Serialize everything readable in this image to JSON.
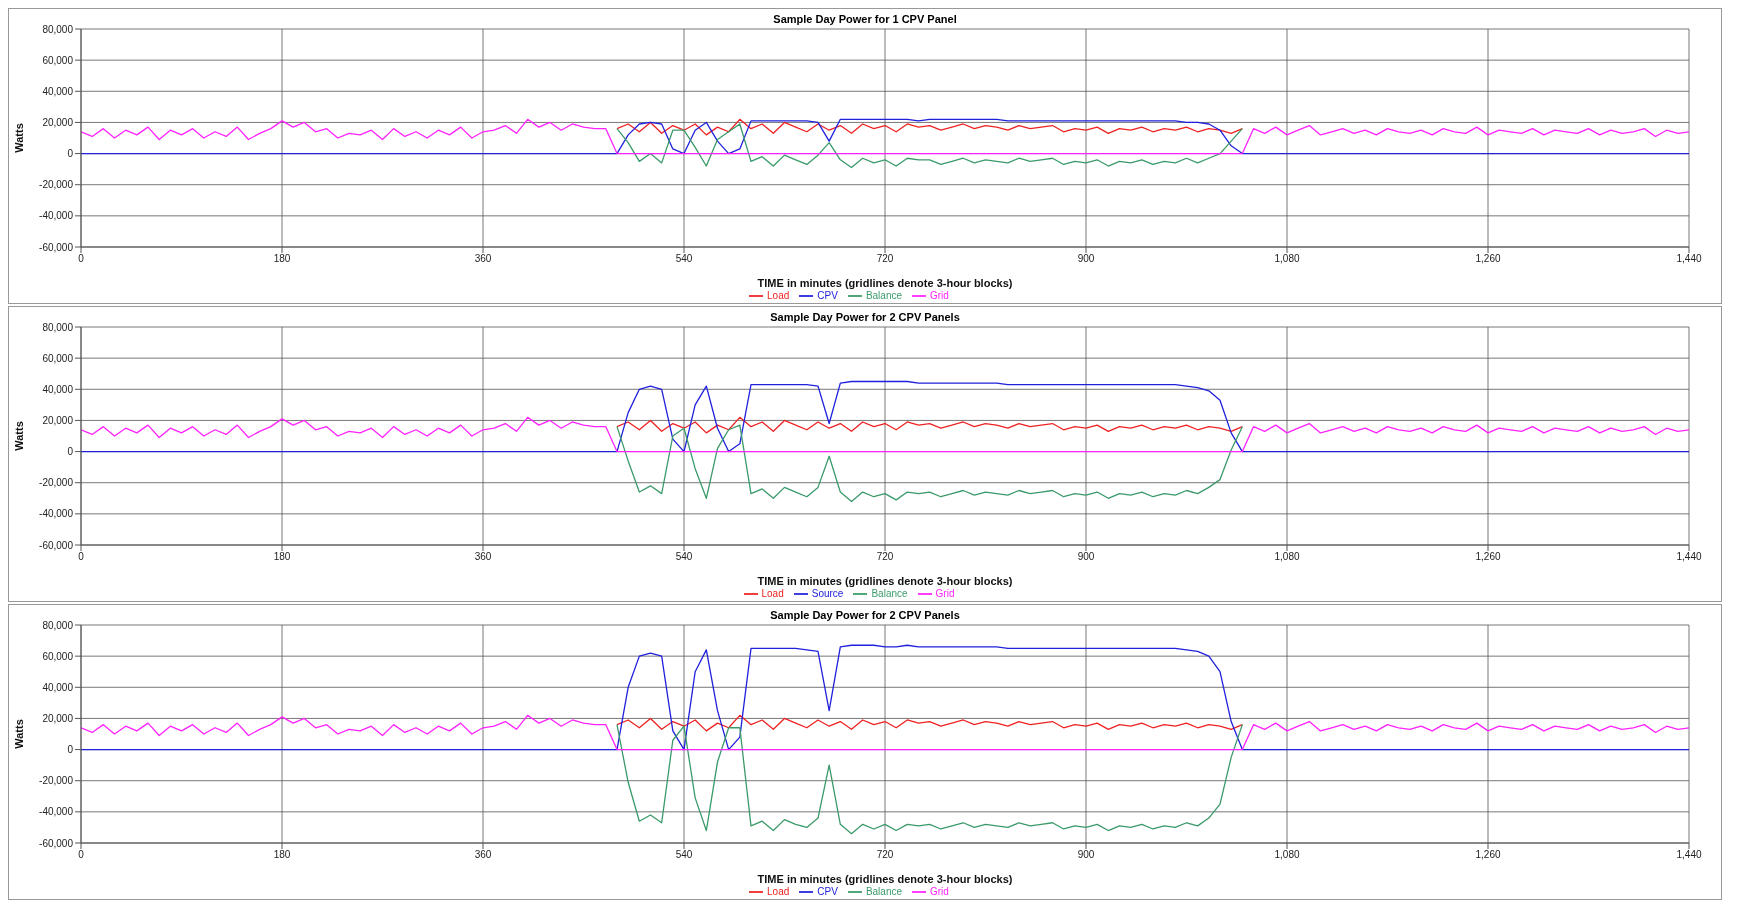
{
  "chart_data": [
    {
      "type": "line",
      "title": "Sample Day Power for 1 CPV Panel",
      "xlabel": "TIME in minutes (gridlines denote 3-hour blocks)",
      "ylabel": "Watts",
      "xlim": [
        0,
        1440
      ],
      "xticks": [
        0,
        180,
        360,
        540,
        720,
        900,
        {
          "value": 1080,
          "label": "1,080"
        },
        {
          "value": 1260,
          "label": "1,260"
        },
        {
          "value": 1440,
          "label": "1,440"
        }
      ],
      "ylim": [
        -60000,
        80000
      ],
      "yticks": [
        {
          "value": -60000,
          "label": "-60,000"
        },
        {
          "value": -40000,
          "label": "-40,000"
        },
        {
          "value": -20000,
          "label": "-20,000"
        },
        {
          "value": 0,
          "label": "0"
        },
        {
          "value": 20000,
          "label": "20,000"
        },
        {
          "value": 40000,
          "label": "40,000"
        },
        {
          "value": 60000,
          "label": "60,000"
        },
        {
          "value": 80000,
          "label": "80,000"
        }
      ],
      "grid": true,
      "legend": "bottom",
      "series": [
        {
          "name": "Load",
          "color": "#ee2222",
          "x": [
            480,
            490,
            500,
            510,
            520,
            530,
            540,
            550,
            560,
            570,
            580,
            590,
            600,
            610,
            620,
            630,
            640,
            650,
            660,
            670,
            680,
            690,
            700,
            710,
            720,
            730,
            740,
            750,
            760,
            770,
            780,
            790,
            800,
            810,
            820,
            830,
            840,
            850,
            860,
            870,
            880,
            890,
            900,
            910,
            920,
            930,
            940,
            950,
            960,
            970,
            980,
            990,
            1000,
            1010,
            1020,
            1030,
            1040
          ],
          "values": [
            16000,
            19000,
            14000,
            20000,
            13000,
            18000,
            15000,
            19000,
            12000,
            17000,
            14000,
            22000,
            16000,
            19000,
            13000,
            20000,
            17000,
            14000,
            19000,
            15000,
            18000,
            13000,
            19000,
            16000,
            18000,
            14000,
            19000,
            17000,
            18000,
            15000,
            17000,
            19000,
            16000,
            18000,
            17000,
            15000,
            18000,
            16000,
            17000,
            18000,
            14000,
            16000,
            15000,
            17000,
            13000,
            16000,
            15000,
            17000,
            14000,
            16000,
            15000,
            17000,
            14000,
            16000,
            15000,
            13000,
            16000
          ]
        },
        {
          "name": "CPV",
          "color": "#2020dd",
          "x": [
            0,
            480,
            490,
            500,
            510,
            520,
            530,
            540,
            550,
            560,
            570,
            580,
            590,
            600,
            610,
            620,
            630,
            640,
            650,
            660,
            670,
            680,
            690,
            700,
            710,
            720,
            730,
            740,
            750,
            760,
            770,
            780,
            790,
            800,
            810,
            820,
            830,
            840,
            850,
            860,
            870,
            880,
            890,
            900,
            910,
            920,
            930,
            940,
            950,
            960,
            970,
            980,
            990,
            1000,
            1010,
            1020,
            1030,
            1040,
            1440
          ],
          "values": [
            0,
            0,
            12000,
            19000,
            20000,
            19000,
            3000,
            0,
            15000,
            20000,
            8000,
            0,
            3000,
            21000,
            21000,
            21000,
            21000,
            21000,
            21000,
            20000,
            8000,
            22000,
            22000,
            22000,
            22000,
            22000,
            22000,
            22000,
            21000,
            22000,
            22000,
            22000,
            22000,
            22000,
            22000,
            22000,
            21000,
            21000,
            21000,
            21000,
            21000,
            21000,
            21000,
            21000,
            21000,
            21000,
            21000,
            21000,
            21000,
            21000,
            21000,
            21000,
            20000,
            20000,
            19000,
            15000,
            5000,
            0,
            0
          ]
        },
        {
          "name": "Balance",
          "color": "#3a9a6a",
          "x": [
            480,
            490,
            500,
            510,
            520,
            530,
            540,
            550,
            560,
            570,
            580,
            590,
            600,
            610,
            620,
            630,
            640,
            650,
            660,
            670,
            680,
            690,
            700,
            710,
            720,
            730,
            740,
            750,
            760,
            770,
            780,
            790,
            800,
            810,
            820,
            830,
            840,
            850,
            860,
            870,
            880,
            890,
            900,
            910,
            920,
            930,
            940,
            950,
            960,
            970,
            980,
            990,
            1000,
            1010,
            1020,
            1030,
            1040
          ],
          "values": [
            16000,
            7000,
            -5000,
            0,
            -6000,
            15000,
            15000,
            4000,
            -8000,
            9000,
            14000,
            19000,
            -5000,
            -2000,
            -8000,
            -1000,
            -4000,
            -7000,
            -1000,
            7000,
            -4000,
            -9000,
            -3000,
            -6000,
            -4000,
            -8000,
            -3000,
            -4000,
            -4000,
            -7000,
            -5000,
            -3000,
            -6000,
            -4000,
            -5000,
            -6000,
            -3000,
            -5000,
            -4000,
            -3000,
            -7000,
            -5000,
            -6000,
            -4000,
            -8000,
            -5000,
            -6000,
            -4000,
            -7000,
            -5000,
            -6000,
            -3000,
            -6000,
            -3000,
            0,
            8000,
            16000
          ]
        },
        {
          "name": "Grid",
          "color": "#ff22ff",
          "x": [
            0,
            10,
            20,
            30,
            40,
            50,
            60,
            70,
            80,
            90,
            100,
            110,
            120,
            130,
            140,
            150,
            160,
            170,
            180,
            190,
            200,
            210,
            220,
            230,
            240,
            250,
            260,
            270,
            280,
            290,
            300,
            310,
            320,
            330,
            340,
            350,
            360,
            370,
            380,
            390,
            400,
            410,
            420,
            430,
            440,
            450,
            460,
            470,
            480,
            1040,
            1050,
            1060,
            1070,
            1080,
            1090,
            1100,
            1110,
            1120,
            1130,
            1140,
            1150,
            1160,
            1170,
            1180,
            1190,
            1200,
            1210,
            1220,
            1230,
            1240,
            1250,
            1260,
            1270,
            1280,
            1290,
            1300,
            1310,
            1320,
            1330,
            1340,
            1350,
            1360,
            1370,
            1380,
            1390,
            1400,
            1410,
            1420,
            1430,
            1440
          ],
          "values": [
            14000,
            11000,
            16000,
            10000,
            15000,
            12000,
            17000,
            9000,
            15000,
            12000,
            16000,
            10000,
            14000,
            11000,
            17000,
            9000,
            13000,
            16000,
            21000,
            17000,
            20000,
            14000,
            16000,
            10000,
            13000,
            12000,
            15000,
            9000,
            16000,
            11000,
            14000,
            10000,
            15000,
            12000,
            17000,
            10000,
            14000,
            15000,
            18000,
            13000,
            22000,
            17000,
            20000,
            15000,
            19000,
            17000,
            16000,
            16000,
            0,
            0,
            16000,
            13000,
            17000,
            12000,
            15000,
            18000,
            12000,
            14000,
            16000,
            13000,
            15000,
            12000,
            16000,
            14000,
            13000,
            15000,
            12000,
            16000,
            14000,
            13000,
            17000,
            12000,
            15000,
            14000,
            13000,
            16000,
            12000,
            15000,
            14000,
            13000,
            16000,
            12000,
            15000,
            13000,
            14000,
            16000,
            11000,
            15000,
            13000,
            14000
          ]
        }
      ]
    },
    {
      "type": "line",
      "title": "Sample Day Power for 2 CPV Panels",
      "xlabel": "TIME in minutes (gridlines denote 3-hour blocks)",
      "ylabel": "Watts",
      "xlim": [
        0,
        1440
      ],
      "xticks": [
        0,
        180,
        360,
        540,
        720,
        900,
        {
          "value": 1080,
          "label": "1,080"
        },
        {
          "value": 1260,
          "label": "1,260"
        },
        {
          "value": 1440,
          "label": "1,440"
        }
      ],
      "ylim": [
        -60000,
        80000
      ],
      "yticks": [
        {
          "value": -60000,
          "label": "-60,000"
        },
        {
          "value": -40000,
          "label": "-40,000"
        },
        {
          "value": -20000,
          "label": "-20,000"
        },
        {
          "value": 0,
          "label": "0"
        },
        {
          "value": 20000,
          "label": "20,000"
        },
        {
          "value": 40000,
          "label": "40,000"
        },
        {
          "value": 60000,
          "label": "60,000"
        },
        {
          "value": 80000,
          "label": "80,000"
        }
      ],
      "grid": true,
      "legend": "bottom",
      "series": [
        {
          "name": "Load",
          "color": "#ee2222",
          "x": [
            480,
            490,
            500,
            510,
            520,
            530,
            540,
            550,
            560,
            570,
            580,
            590,
            600,
            610,
            620,
            630,
            640,
            650,
            660,
            670,
            680,
            690,
            700,
            710,
            720,
            730,
            740,
            750,
            760,
            770,
            780,
            790,
            800,
            810,
            820,
            830,
            840,
            850,
            860,
            870,
            880,
            890,
            900,
            910,
            920,
            930,
            940,
            950,
            960,
            970,
            980,
            990,
            1000,
            1010,
            1020,
            1030,
            1040
          ],
          "values": [
            16000,
            19000,
            14000,
            20000,
            13000,
            18000,
            15000,
            19000,
            12000,
            17000,
            14000,
            22000,
            16000,
            19000,
            13000,
            20000,
            17000,
            14000,
            19000,
            15000,
            18000,
            13000,
            19000,
            16000,
            18000,
            14000,
            19000,
            17000,
            18000,
            15000,
            17000,
            19000,
            16000,
            18000,
            17000,
            15000,
            18000,
            16000,
            17000,
            18000,
            14000,
            16000,
            15000,
            17000,
            13000,
            16000,
            15000,
            17000,
            14000,
            16000,
            15000,
            17000,
            14000,
            16000,
            15000,
            13000,
            16000
          ]
        },
        {
          "name": "Source",
          "color": "#2020dd",
          "x": [
            0,
            480,
            490,
            500,
            510,
            520,
            530,
            540,
            550,
            560,
            570,
            580,
            590,
            600,
            610,
            620,
            630,
            640,
            650,
            660,
            670,
            680,
            690,
            700,
            710,
            720,
            730,
            740,
            750,
            760,
            770,
            780,
            790,
            800,
            810,
            820,
            830,
            840,
            850,
            860,
            870,
            880,
            890,
            900,
            910,
            920,
            930,
            940,
            950,
            960,
            970,
            980,
            990,
            1000,
            1010,
            1020,
            1030,
            1040,
            1440
          ],
          "values": [
            0,
            0,
            25000,
            40000,
            42000,
            40000,
            8000,
            0,
            30000,
            42000,
            15000,
            0,
            5000,
            43000,
            43000,
            43000,
            43000,
            43000,
            43000,
            42000,
            18000,
            44000,
            45000,
            45000,
            45000,
            45000,
            45000,
            45000,
            44000,
            44000,
            44000,
            44000,
            44000,
            44000,
            44000,
            44000,
            43000,
            43000,
            43000,
            43000,
            43000,
            43000,
            43000,
            43000,
            43000,
            43000,
            43000,
            43000,
            43000,
            43000,
            43000,
            43000,
            42000,
            41000,
            39000,
            33000,
            12000,
            0,
            0
          ]
        },
        {
          "name": "Balance",
          "color": "#3a9a6a",
          "x": [
            480,
            490,
            500,
            510,
            520,
            530,
            540,
            550,
            560,
            570,
            580,
            590,
            600,
            610,
            620,
            630,
            640,
            650,
            660,
            670,
            680,
            690,
            700,
            710,
            720,
            730,
            740,
            750,
            760,
            770,
            780,
            790,
            800,
            810,
            820,
            830,
            840,
            850,
            860,
            870,
            880,
            890,
            900,
            910,
            920,
            930,
            940,
            950,
            960,
            970,
            980,
            990,
            1000,
            1010,
            1020,
            1030,
            1040
          ],
          "values": [
            16000,
            -6000,
            -26000,
            -22000,
            -27000,
            10000,
            15000,
            -11000,
            -30000,
            2000,
            14000,
            17000,
            -27000,
            -24000,
            -30000,
            -23000,
            -26000,
            -29000,
            -23000,
            -3000,
            -26000,
            -32000,
            -26000,
            -29000,
            -27000,
            -31000,
            -26000,
            -27000,
            -26000,
            -29000,
            -27000,
            -25000,
            -28000,
            -26000,
            -27000,
            -28000,
            -25000,
            -27000,
            -26000,
            -25000,
            -29000,
            -27000,
            -28000,
            -26000,
            -30000,
            -27000,
            -28000,
            -26000,
            -29000,
            -27000,
            -28000,
            -25000,
            -27000,
            -23000,
            -18000,
            1000,
            16000
          ]
        },
        {
          "name": "Grid",
          "color": "#ff22ff",
          "x": [
            0,
            10,
            20,
            30,
            40,
            50,
            60,
            70,
            80,
            90,
            100,
            110,
            120,
            130,
            140,
            150,
            160,
            170,
            180,
            190,
            200,
            210,
            220,
            230,
            240,
            250,
            260,
            270,
            280,
            290,
            300,
            310,
            320,
            330,
            340,
            350,
            360,
            370,
            380,
            390,
            400,
            410,
            420,
            430,
            440,
            450,
            460,
            470,
            480,
            1040,
            1050,
            1060,
            1070,
            1080,
            1090,
            1100,
            1110,
            1120,
            1130,
            1140,
            1150,
            1160,
            1170,
            1180,
            1190,
            1200,
            1210,
            1220,
            1230,
            1240,
            1250,
            1260,
            1270,
            1280,
            1290,
            1300,
            1310,
            1320,
            1330,
            1340,
            1350,
            1360,
            1370,
            1380,
            1390,
            1400,
            1410,
            1420,
            1430,
            1440
          ],
          "values": [
            14000,
            11000,
            16000,
            10000,
            15000,
            12000,
            17000,
            9000,
            15000,
            12000,
            16000,
            10000,
            14000,
            11000,
            17000,
            9000,
            13000,
            16000,
            21000,
            17000,
            20000,
            14000,
            16000,
            10000,
            13000,
            12000,
            15000,
            9000,
            16000,
            11000,
            14000,
            10000,
            15000,
            12000,
            17000,
            10000,
            14000,
            15000,
            18000,
            13000,
            22000,
            17000,
            20000,
            15000,
            19000,
            17000,
            16000,
            16000,
            0,
            0,
            16000,
            13000,
            17000,
            12000,
            15000,
            18000,
            12000,
            14000,
            16000,
            13000,
            15000,
            12000,
            16000,
            14000,
            13000,
            15000,
            12000,
            16000,
            14000,
            13000,
            17000,
            12000,
            15000,
            14000,
            13000,
            16000,
            12000,
            15000,
            14000,
            13000,
            16000,
            12000,
            15000,
            13000,
            14000,
            16000,
            11000,
            15000,
            13000,
            14000
          ]
        }
      ]
    },
    {
      "type": "line",
      "title": "Sample Day Power for 2 CPV Panels",
      "xlabel": "TIME in minutes (gridlines denote 3-hour blocks)",
      "ylabel": "Watts",
      "xlim": [
        0,
        1440
      ],
      "xticks": [
        0,
        180,
        360,
        540,
        720,
        900,
        {
          "value": 1080,
          "label": "1,080"
        },
        {
          "value": 1260,
          "label": "1,260"
        },
        {
          "value": 1440,
          "label": "1,440"
        }
      ],
      "ylim": [
        -60000,
        80000
      ],
      "yticks": [
        {
          "value": -60000,
          "label": "-60,000"
        },
        {
          "value": -40000,
          "label": "-40,000"
        },
        {
          "value": -20000,
          "label": "-20,000"
        },
        {
          "value": 0,
          "label": "0"
        },
        {
          "value": 20000,
          "label": "20,000"
        },
        {
          "value": 40000,
          "label": "40,000"
        },
        {
          "value": 60000,
          "label": "60,000"
        },
        {
          "value": 80000,
          "label": "80,000"
        }
      ],
      "grid": true,
      "legend": "bottom",
      "series": [
        {
          "name": "Load",
          "color": "#ee2222",
          "x": [
            480,
            490,
            500,
            510,
            520,
            530,
            540,
            550,
            560,
            570,
            580,
            590,
            600,
            610,
            620,
            630,
            640,
            650,
            660,
            670,
            680,
            690,
            700,
            710,
            720,
            730,
            740,
            750,
            760,
            770,
            780,
            790,
            800,
            810,
            820,
            830,
            840,
            850,
            860,
            870,
            880,
            890,
            900,
            910,
            920,
            930,
            940,
            950,
            960,
            970,
            980,
            990,
            1000,
            1010,
            1020,
            1030,
            1040
          ],
          "values": [
            16000,
            19000,
            14000,
            20000,
            13000,
            18000,
            15000,
            19000,
            12000,
            17000,
            14000,
            22000,
            16000,
            19000,
            13000,
            20000,
            17000,
            14000,
            19000,
            15000,
            18000,
            13000,
            19000,
            16000,
            18000,
            14000,
            19000,
            17000,
            18000,
            15000,
            17000,
            19000,
            16000,
            18000,
            17000,
            15000,
            18000,
            16000,
            17000,
            18000,
            14000,
            16000,
            15000,
            17000,
            13000,
            16000,
            15000,
            17000,
            14000,
            16000,
            15000,
            17000,
            14000,
            16000,
            15000,
            13000,
            16000
          ]
        },
        {
          "name": "CPV",
          "color": "#2020dd",
          "x": [
            0,
            480,
            490,
            500,
            510,
            520,
            530,
            540,
            550,
            560,
            570,
            580,
            590,
            600,
            610,
            620,
            630,
            640,
            650,
            660,
            670,
            680,
            690,
            700,
            710,
            720,
            730,
            740,
            750,
            760,
            770,
            780,
            790,
            800,
            810,
            820,
            830,
            840,
            850,
            860,
            870,
            880,
            890,
            900,
            910,
            920,
            930,
            940,
            950,
            960,
            970,
            980,
            990,
            1000,
            1010,
            1020,
            1030,
            1040,
            1440
          ],
          "values": [
            0,
            0,
            40000,
            60000,
            62000,
            60000,
            12000,
            0,
            50000,
            64000,
            25000,
            0,
            8000,
            65000,
            65000,
            65000,
            65000,
            65000,
            64000,
            63000,
            25000,
            66000,
            67000,
            67000,
            67000,
            66000,
            66000,
            67000,
            66000,
            66000,
            66000,
            66000,
            66000,
            66000,
            66000,
            66000,
            65000,
            65000,
            65000,
            65000,
            65000,
            65000,
            65000,
            65000,
            65000,
            65000,
            65000,
            65000,
            65000,
            65000,
            65000,
            65000,
            64000,
            63000,
            60000,
            50000,
            18000,
            0,
            0
          ]
        },
        {
          "name": "Balance",
          "color": "#3a9a6a",
          "x": [
            480,
            490,
            500,
            510,
            520,
            530,
            540,
            550,
            560,
            570,
            580,
            590,
            600,
            610,
            620,
            630,
            640,
            650,
            660,
            670,
            680,
            690,
            700,
            710,
            720,
            730,
            740,
            750,
            760,
            770,
            780,
            790,
            800,
            810,
            820,
            830,
            840,
            850,
            860,
            870,
            880,
            890,
            900,
            910,
            920,
            930,
            940,
            950,
            960,
            970,
            980,
            990,
            1000,
            1010,
            1020,
            1030,
            1040
          ],
          "values": [
            16000,
            -21000,
            -46000,
            -42000,
            -47000,
            6000,
            15000,
            -31000,
            -52000,
            -8000,
            14000,
            14000,
            -49000,
            -46000,
            -52000,
            -45000,
            -48000,
            -50000,
            -44000,
            -10000,
            -48000,
            -54000,
            -48000,
            -51000,
            -48000,
            -52000,
            -48000,
            -49000,
            -48000,
            -51000,
            -49000,
            -47000,
            -50000,
            -48000,
            -49000,
            -50000,
            -47000,
            -49000,
            -48000,
            -47000,
            -51000,
            -49000,
            -50000,
            -48000,
            -52000,
            -49000,
            -50000,
            -48000,
            -51000,
            -49000,
            -50000,
            -47000,
            -49000,
            -44000,
            -35000,
            -5000,
            16000
          ]
        },
        {
          "name": "Grid",
          "color": "#ff22ff",
          "x": [
            0,
            10,
            20,
            30,
            40,
            50,
            60,
            70,
            80,
            90,
            100,
            110,
            120,
            130,
            140,
            150,
            160,
            170,
            180,
            190,
            200,
            210,
            220,
            230,
            240,
            250,
            260,
            270,
            280,
            290,
            300,
            310,
            320,
            330,
            340,
            350,
            360,
            370,
            380,
            390,
            400,
            410,
            420,
            430,
            440,
            450,
            460,
            470,
            480,
            1040,
            1050,
            1060,
            1070,
            1080,
            1090,
            1100,
            1110,
            1120,
            1130,
            1140,
            1150,
            1160,
            1170,
            1180,
            1190,
            1200,
            1210,
            1220,
            1230,
            1240,
            1250,
            1260,
            1270,
            1280,
            1290,
            1300,
            1310,
            1320,
            1330,
            1340,
            1350,
            1360,
            1370,
            1380,
            1390,
            1400,
            1410,
            1420,
            1430,
            1440
          ],
          "values": [
            14000,
            11000,
            16000,
            10000,
            15000,
            12000,
            17000,
            9000,
            15000,
            12000,
            16000,
            10000,
            14000,
            11000,
            17000,
            9000,
            13000,
            16000,
            21000,
            17000,
            20000,
            14000,
            16000,
            10000,
            13000,
            12000,
            15000,
            9000,
            16000,
            11000,
            14000,
            10000,
            15000,
            12000,
            17000,
            10000,
            14000,
            15000,
            18000,
            13000,
            22000,
            17000,
            20000,
            15000,
            19000,
            17000,
            16000,
            16000,
            0,
            0,
            16000,
            13000,
            17000,
            12000,
            15000,
            18000,
            12000,
            14000,
            16000,
            13000,
            15000,
            12000,
            16000,
            14000,
            13000,
            15000,
            12000,
            16000,
            14000,
            13000,
            17000,
            12000,
            15000,
            14000,
            13000,
            16000,
            12000,
            15000,
            14000,
            13000,
            16000,
            12000,
            15000,
            13000,
            14000,
            16000,
            11000,
            15000,
            13000,
            14000
          ]
        }
      ]
    }
  ]
}
